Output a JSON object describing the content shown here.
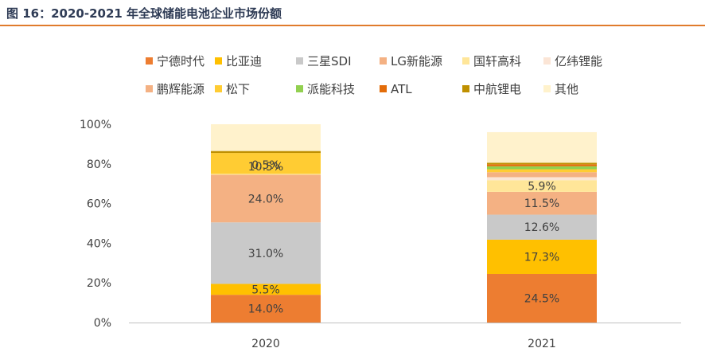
{
  "figure": {
    "title": "图 16：2020-2021 年全球储能电池企业市场份额"
  },
  "chart_data": {
    "type": "bar",
    "stacked": true,
    "title": "",
    "xlabel": "",
    "ylabel": "",
    "ylim": [
      0,
      100
    ],
    "yticks": [
      "0%",
      "20%",
      "40%",
      "60%",
      "80%",
      "100%"
    ],
    "categories": [
      "2020",
      "2021"
    ],
    "legend_position": "top",
    "series": [
      {
        "name": "宁德时代",
        "color": "#ed7d31",
        "values": [
          14.0,
          24.5
        ],
        "labels": [
          "14.0%",
          "24.5%"
        ]
      },
      {
        "name": "比亚迪",
        "color": "#ffc000",
        "values": [
          5.5,
          17.3
        ],
        "labels": [
          "5.5%",
          "17.3%"
        ]
      },
      {
        "name": "三星SDI",
        "color": "#c9c9c9",
        "values": [
          31.0,
          12.6
        ],
        "labels": [
          "31.0%",
          "12.6%"
        ]
      },
      {
        "name": "LG新能源",
        "color": "#f4b183",
        "values": [
          24.0,
          11.5
        ],
        "labels": [
          "24.0%",
          "11.5%"
        ]
      },
      {
        "name": "国轩高科",
        "color": "#ffe699",
        "values": [
          0.5,
          5.9
        ],
        "labels": [
          "0.5%",
          "5.9%"
        ]
      },
      {
        "name": "亿纬锂能",
        "color": "#fbe5d6",
        "values": [
          0,
          1.5
        ],
        "labels": [
          "",
          ""
        ]
      },
      {
        "name": "鹏辉能源",
        "color": "#f4b183",
        "values": [
          0,
          2.5
        ],
        "labels": [
          "",
          ""
        ]
      },
      {
        "name": "松下",
        "color": "#ffcc33",
        "values": [
          10.5,
          1.5
        ],
        "labels": [
          "10.5%",
          ""
        ]
      },
      {
        "name": "派能科技",
        "color": "#92d050",
        "values": [
          0,
          1.5
        ],
        "labels": [
          "",
          ""
        ]
      },
      {
        "name": "ATL",
        "color": "#e36c09",
        "values": [
          0,
          1.0
        ],
        "labels": [
          "",
          ""
        ]
      },
      {
        "name": "中航锂电",
        "color": "#bf9000",
        "values": [
          1.0,
          0.8
        ],
        "labels": [
          "",
          ""
        ]
      },
      {
        "name": "其他",
        "color": "#fff2cc",
        "values": [
          13.5,
          15.4
        ],
        "labels": [
          "",
          ""
        ]
      }
    ]
  }
}
